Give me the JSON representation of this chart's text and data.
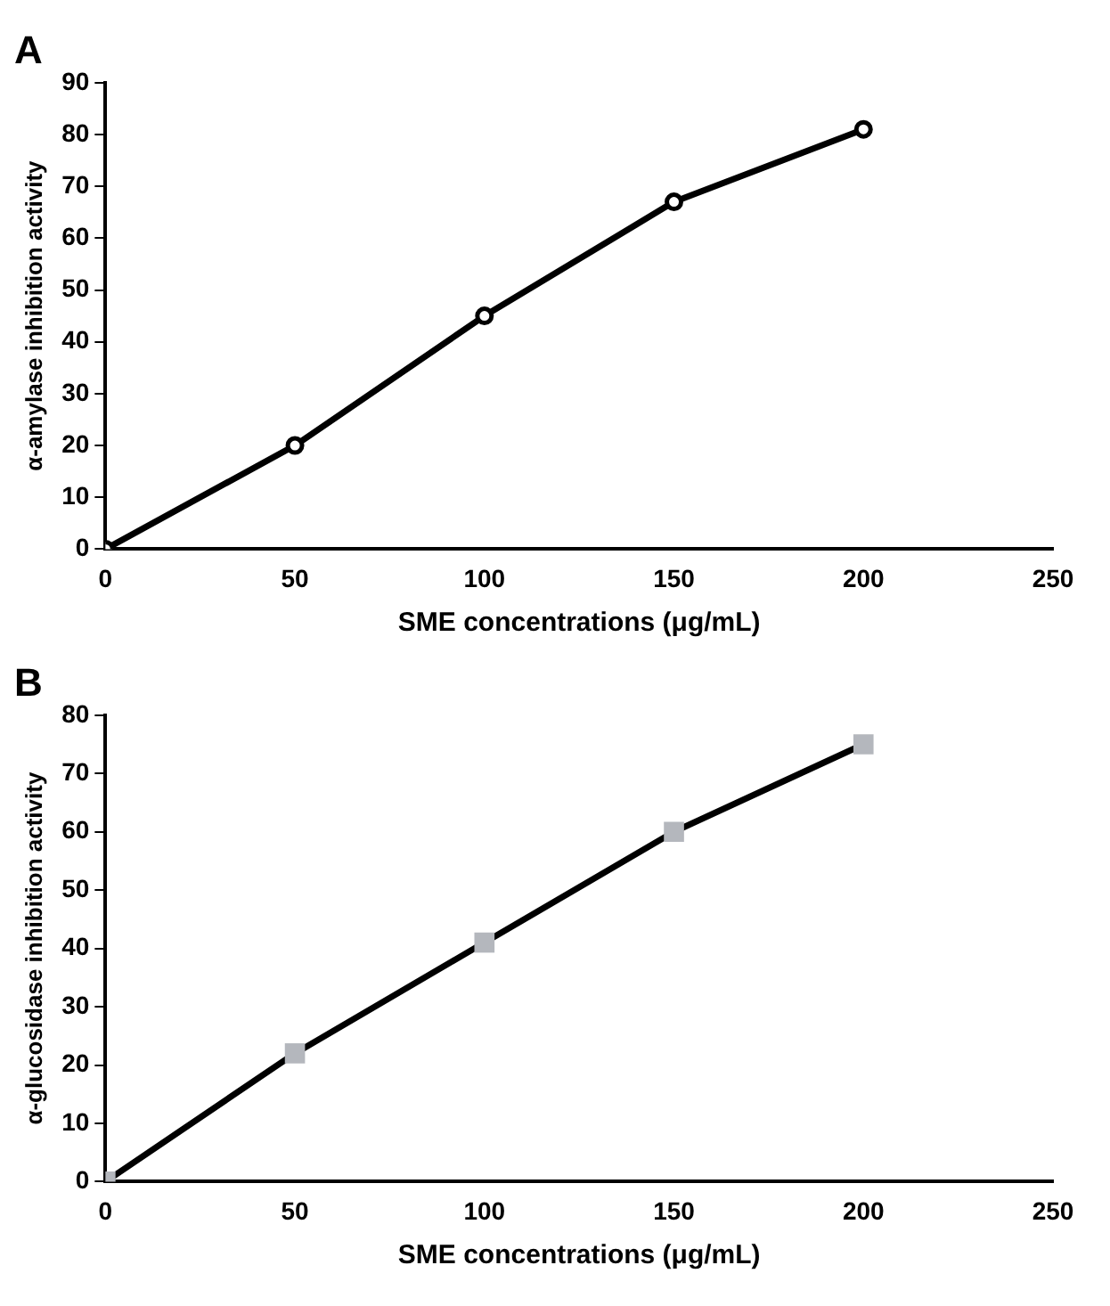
{
  "chart_data": [
    {
      "type": "line",
      "title": "A",
      "xlabel": "SME concentrations (μg/mL)",
      "ylabel": "α-amylase inhibition activity",
      "x": [
        0,
        50,
        100,
        150,
        200
      ],
      "series": [
        {
          "color": "#000000",
          "colors": [
            "#ffffff",
            "#ffffff",
            "#ffffff",
            "#ffffff",
            "#ffffff"
          ],
          "values": [
            0,
            20,
            45,
            67,
            81
          ]
        }
      ],
      "xlim": [
        0,
        250
      ],
      "xticks": [
        0,
        50,
        100,
        150,
        200,
        250
      ],
      "ylim": [
        0,
        90
      ],
      "yticks": [
        0,
        10,
        20,
        30,
        40,
        50,
        60,
        70,
        80,
        90
      ],
      "grid": false,
      "legend": false,
      "marker": "circle",
      "line_style": "solid"
    },
    {
      "type": "line",
      "title": "B",
      "xlabel": "SME concentrations (μg/mL)",
      "ylabel": "α-glucosidase inhibition activity",
      "x": [
        0,
        50,
        100,
        150,
        200
      ],
      "series": [
        {
          "color": "#000000",
          "colors": [
            "#b4b7bd",
            "#b4b7bd",
            "#b4b7bd",
            "#b4b7bd",
            "#b4b7bd"
          ],
          "values": [
            0,
            22,
            41,
            60,
            75
          ]
        }
      ],
      "xlim": [
        0,
        250
      ],
      "xticks": [
        0,
        50,
        100,
        150,
        200,
        250
      ],
      "ylim": [
        0,
        80
      ],
      "yticks": [
        0,
        10,
        20,
        30,
        40,
        50,
        60,
        70,
        80
      ],
      "grid": false,
      "legend": false,
      "marker": "square",
      "line_style": "solid"
    }
  ]
}
